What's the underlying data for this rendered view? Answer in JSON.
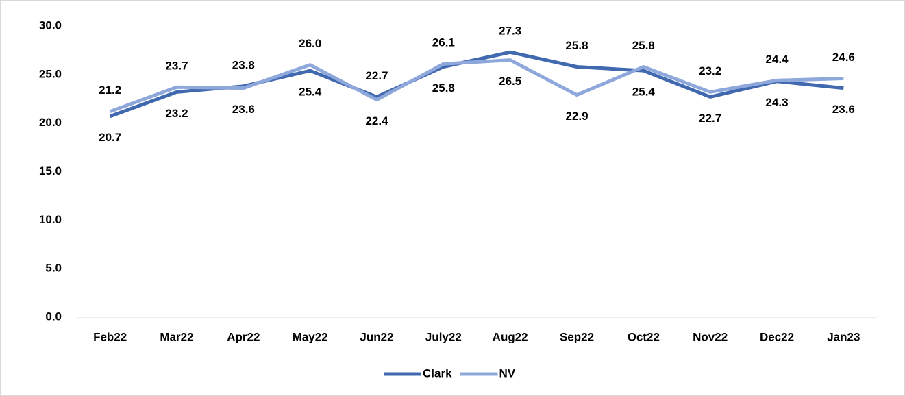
{
  "chart_data": {
    "type": "line",
    "categories": [
      "Feb22",
      "Mar22",
      "Apr22",
      "May22",
      "Jun22",
      "July22",
      "Aug22",
      "Sep22",
      "Oct22",
      "Nov22",
      "Dec22",
      "Jan23"
    ],
    "series": [
      {
        "name": "Clark",
        "color": "#4169b0",
        "values": [
          20.7,
          23.2,
          23.8,
          25.4,
          22.7,
          25.8,
          27.3,
          25.8,
          25.4,
          22.7,
          24.3,
          23.6
        ],
        "value_labels": [
          "20.7",
          "23.2",
          "23.8",
          "25.4",
          "22.7",
          "25.8",
          "27.3",
          "25.8",
          "25.4",
          "22.7",
          "24.3",
          "23.6"
        ]
      },
      {
        "name": "NV",
        "color": "#8fa8dc",
        "values": [
          21.2,
          23.7,
          23.6,
          26.0,
          22.4,
          26.1,
          26.5,
          22.9,
          25.8,
          23.2,
          24.4,
          24.6
        ],
        "value_labels": [
          "21.2",
          "23.7",
          "23.6",
          "26.0",
          "22.4",
          "26.1",
          "26.5",
          "22.9",
          "25.8",
          "23.2",
          "24.4",
          "24.6"
        ]
      }
    ],
    "ylim": [
      0,
      30
    ],
    "yticks": [
      {
        "value": 0,
        "label": "0.0"
      },
      {
        "value": 5,
        "label": "5.0"
      },
      {
        "value": 10,
        "label": "10.0"
      },
      {
        "value": 15,
        "label": "15.0"
      },
      {
        "value": 20,
        "label": "20.0"
      },
      {
        "value": 25,
        "label": "25.0"
      },
      {
        "value": 30,
        "label": "30.0"
      }
    ],
    "grid": false,
    "legend": "bottom"
  }
}
